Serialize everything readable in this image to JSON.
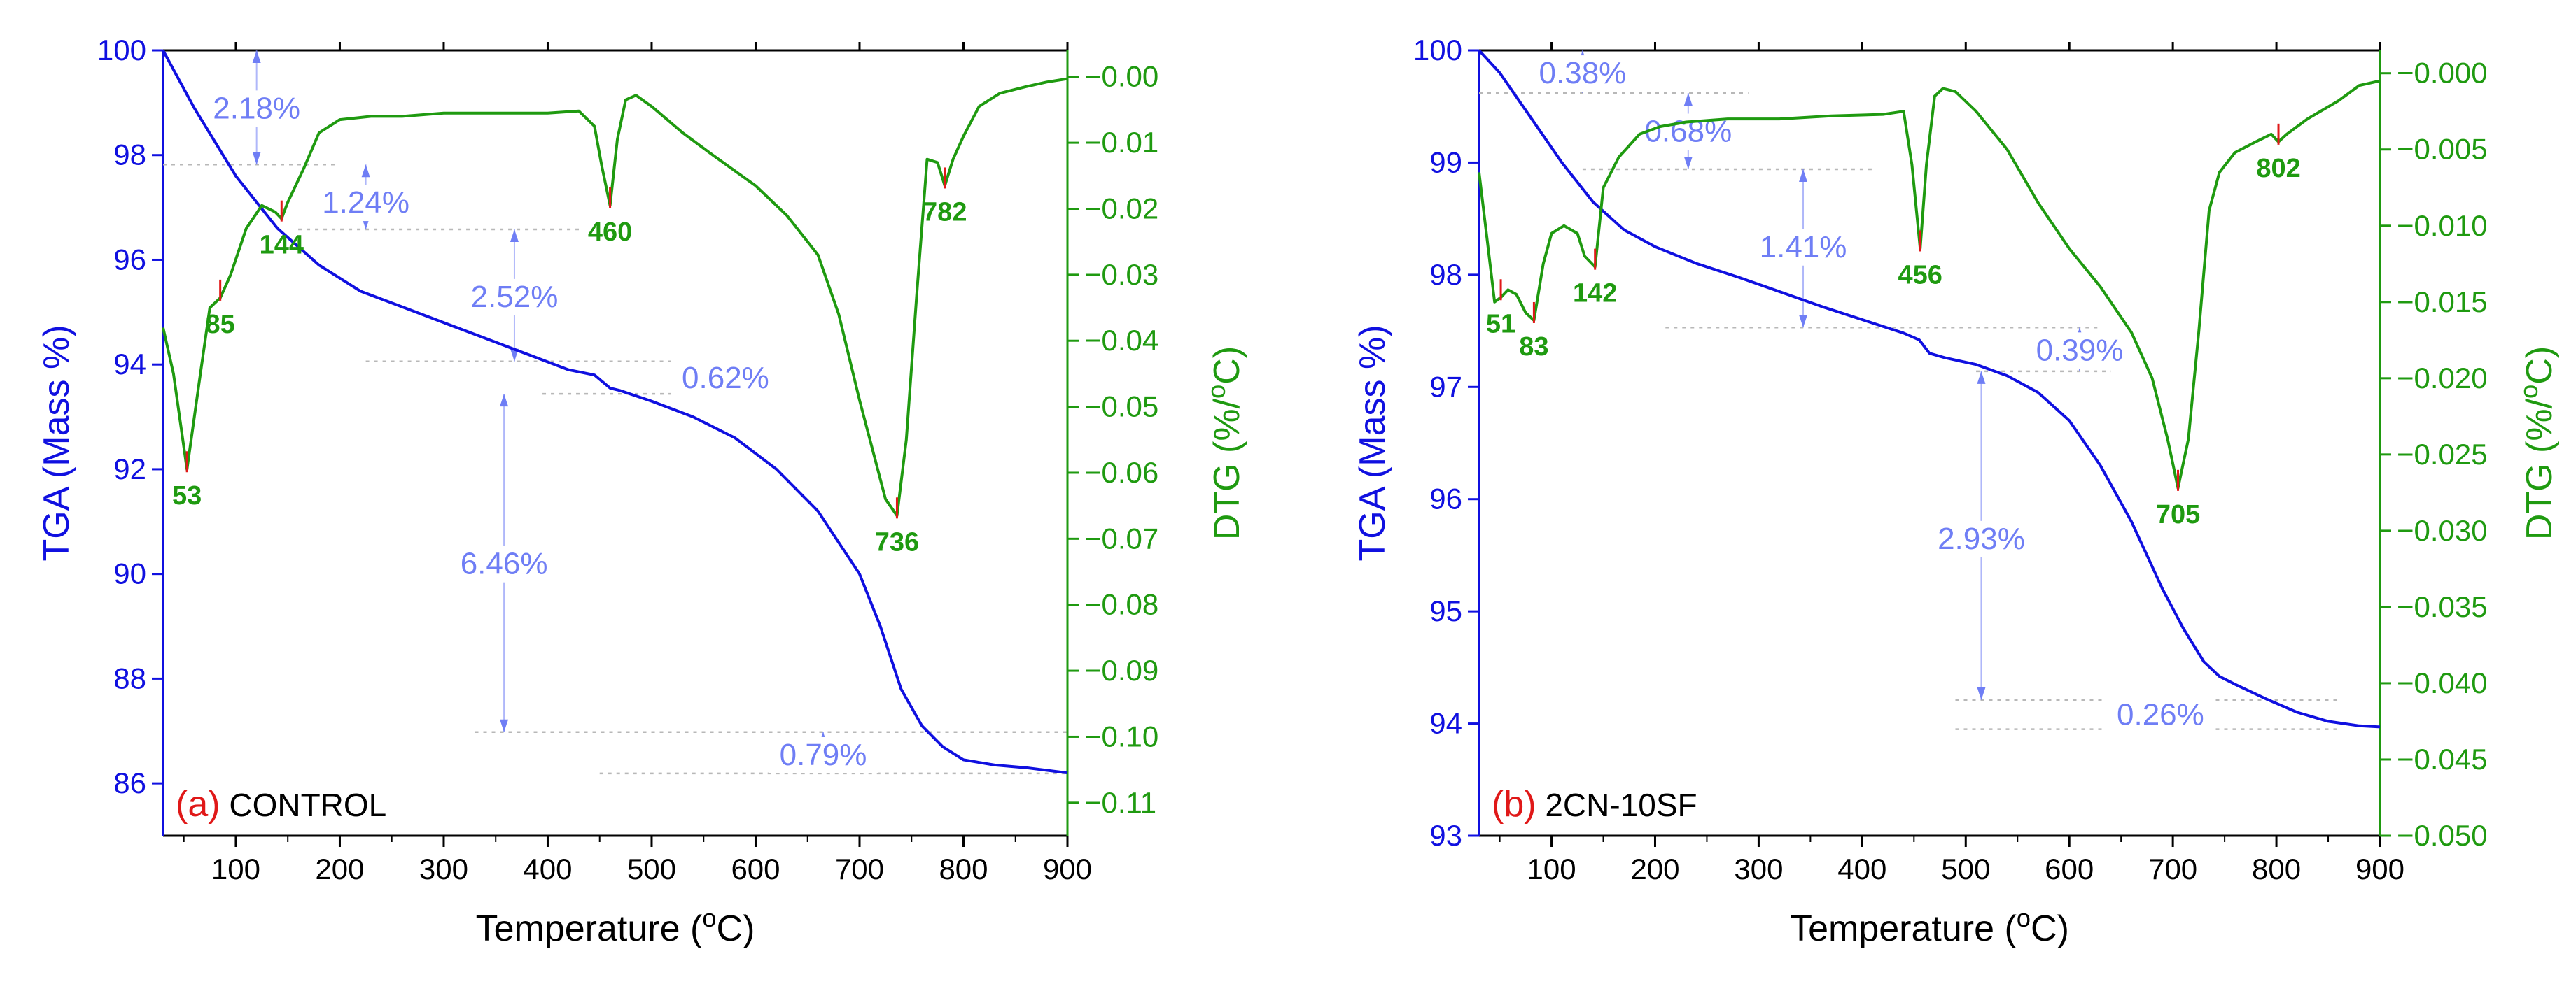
{
  "colors": {
    "tga": "#1010e0",
    "dtg": "#1f9a10",
    "annotation": "#6f7ef5",
    "peak_tick": "#e01818",
    "panel_letter": "#e01818",
    "axis": "#000000",
    "guide": "#b8b8b8"
  },
  "chart_data": [
    {
      "type": "line",
      "panel_letter": "(a)",
      "sample_label": "CONTROL",
      "xlabel": "Temperature (oC)",
      "ylabel_left": "TGA (Mass %)",
      "ylabel_right": "DTG (%/oC)",
      "xlim": [
        30,
        900
      ],
      "ylim_left": [
        85,
        100
      ],
      "ylim_right": [
        -0.115,
        0.004
      ],
      "x_ticks": [
        100,
        200,
        300,
        400,
        500,
        600,
        700,
        800,
        900
      ],
      "x_tick_labels": [
        "100",
        "200",
        "300",
        "400",
        "500",
        "600",
        "700",
        "800",
        "900"
      ],
      "y_left_ticks": [
        86,
        88,
        90,
        92,
        94,
        96,
        98,
        100
      ],
      "y_left_tick_labels": [
        "86",
        "88",
        "90",
        "92",
        "94",
        "96",
        "98",
        "100"
      ],
      "y_right_ticks": [
        0.0,
        -0.01,
        -0.02,
        -0.03,
        -0.04,
        -0.05,
        -0.06,
        -0.07,
        -0.08,
        -0.09,
        -0.1,
        -0.11
      ],
      "y_right_tick_labels": [
        "−0.00",
        "−0.01",
        "−0.02",
        "−0.03",
        "−0.04",
        "−0.05",
        "−0.06",
        "−0.07",
        "−0.08",
        "−0.09",
        "−0.10",
        "−0.11"
      ],
      "series": [
        {
          "name": "TGA",
          "axis": "left",
          "x": [
            30,
            60,
            100,
            140,
            180,
            220,
            260,
            300,
            340,
            380,
            420,
            445,
            460,
            470,
            500,
            540,
            580,
            620,
            660,
            700,
            720,
            740,
            760,
            780,
            800,
            830,
            860,
            900
          ],
          "values": [
            100.0,
            98.9,
            97.6,
            96.6,
            95.9,
            95.4,
            95.1,
            94.8,
            94.5,
            94.2,
            93.9,
            93.8,
            93.55,
            93.5,
            93.3,
            93.0,
            92.6,
            92.0,
            91.2,
            90.0,
            89.0,
            87.8,
            87.1,
            86.7,
            86.45,
            86.35,
            86.3,
            86.2
          ]
        },
        {
          "name": "DTG",
          "axis": "right",
          "x": [
            30,
            40,
            53,
            65,
            75,
            85,
            95,
            110,
            125,
            138,
            144,
            150,
            165,
            180,
            200,
            230,
            260,
            300,
            350,
            400,
            430,
            445,
            452,
            460,
            467,
            475,
            485,
            500,
            530,
            560,
            600,
            630,
            660,
            680,
            700,
            715,
            725,
            736,
            745,
            755,
            765,
            775,
            782,
            790,
            800,
            815,
            835,
            860,
            880,
            900
          ],
          "values": [
            -0.038,
            -0.045,
            -0.0595,
            -0.046,
            -0.035,
            -0.0335,
            -0.03,
            -0.023,
            -0.0195,
            -0.0205,
            -0.0215,
            -0.019,
            -0.014,
            -0.0085,
            -0.0065,
            -0.006,
            -0.006,
            -0.0055,
            -0.0055,
            -0.0055,
            -0.0052,
            -0.0075,
            -0.0135,
            -0.0195,
            -0.0095,
            -0.0035,
            -0.0028,
            -0.0045,
            -0.0085,
            -0.012,
            -0.0165,
            -0.021,
            -0.027,
            -0.036,
            -0.049,
            -0.058,
            -0.064,
            -0.0665,
            -0.055,
            -0.033,
            -0.0125,
            -0.013,
            -0.0165,
            -0.0125,
            -0.009,
            -0.0045,
            -0.0025,
            -0.0015,
            -0.0008,
            -0.0003
          ]
        }
      ],
      "peaks": [
        {
          "x": 53,
          "label": "53"
        },
        {
          "x": 85,
          "label": "85"
        },
        {
          "x": 144,
          "label": "144"
        },
        {
          "x": 460,
          "label": "460"
        },
        {
          "x": 736,
          "label": "736"
        },
        {
          "x": 782,
          "label": "782"
        }
      ],
      "mass_losses": [
        {
          "label": "2.18%",
          "x_arrow": 120,
          "y_top": 100.0,
          "y_bottom": 97.82,
          "guide_x0": 30,
          "guide_x1": 195,
          "text_x": 120,
          "text_y": 98.9
        },
        {
          "label": "1.24%",
          "x_arrow": 225,
          "y_top": 97.82,
          "y_bottom": 96.58,
          "guide_x0": 160,
          "guide_x1": 430,
          "text_x": 225,
          "text_y": 97.1
        },
        {
          "label": "2.52%",
          "x_arrow": 368,
          "y_top": 96.58,
          "y_bottom": 94.06,
          "guide_x0": 225,
          "guide_x1": 520,
          "text_x": 368,
          "text_y": 95.3
        },
        {
          "label": "0.62%",
          "x_arrow": 571,
          "y_top": 94.06,
          "y_bottom": 93.44,
          "guide_x0": 395,
          "guide_x1": 590,
          "text_x": 571,
          "text_y": 93.75
        },
        {
          "label": "6.46%",
          "x_arrow": 358,
          "y_top": 93.44,
          "y_bottom": 86.98,
          "guide_x0": 330,
          "guide_x1": 900,
          "text_x": 358,
          "text_y": 90.2
        },
        {
          "label": "0.79%",
          "x_arrow": 665,
          "y_top": 86.98,
          "y_bottom": 86.19,
          "guide_x0": 450,
          "guide_x1": 900,
          "text_x": 665,
          "text_y": 86.55
        }
      ]
    },
    {
      "type": "line",
      "panel_letter": "(b)",
      "sample_label": "2CN-10SF",
      "xlabel": "Temperature (oC)",
      "ylabel_left": "TGA (Mass %)",
      "ylabel_right": "DTG (%/oC)",
      "xlim": [
        30,
        900
      ],
      "ylim_left": [
        93,
        100
      ],
      "ylim_right": [
        -0.05,
        0.0015
      ],
      "x_ticks": [
        100,
        200,
        300,
        400,
        500,
        600,
        700,
        800,
        900
      ],
      "x_tick_labels": [
        "100",
        "200",
        "300",
        "400",
        "500",
        "600",
        "700",
        "800",
        "900"
      ],
      "y_left_ticks": [
        93,
        94,
        95,
        96,
        97,
        98,
        99,
        100
      ],
      "y_left_tick_labels": [
        "93",
        "94",
        "95",
        "96",
        "97",
        "98",
        "99",
        "100"
      ],
      "y_right_ticks": [
        0.0,
        -0.005,
        -0.01,
        -0.015,
        -0.02,
        -0.025,
        -0.03,
        -0.035,
        -0.04,
        -0.045,
        -0.05
      ],
      "y_right_tick_labels": [
        "−0.000",
        "−0.005",
        "−0.010",
        "−0.015",
        "−0.020",
        "−0.025",
        "−0.030",
        "−0.035",
        "−0.040",
        "−0.045",
        "−0.050"
      ],
      "series": [
        {
          "name": "TGA",
          "axis": "left",
          "x": [
            30,
            50,
            80,
            110,
            140,
            170,
            200,
            240,
            280,
            320,
            360,
            400,
            440,
            455,
            465,
            480,
            510,
            540,
            570,
            600,
            630,
            660,
            690,
            710,
            730,
            745,
            760,
            790,
            820,
            850,
            880,
            900
          ],
          "values": [
            100.0,
            99.8,
            99.4,
            99.0,
            98.65,
            98.4,
            98.25,
            98.1,
            97.98,
            97.85,
            97.72,
            97.6,
            97.48,
            97.42,
            97.3,
            97.26,
            97.2,
            97.1,
            96.95,
            96.7,
            96.3,
            95.8,
            95.2,
            94.85,
            94.55,
            94.42,
            94.35,
            94.22,
            94.1,
            94.02,
            93.98,
            93.97
          ]
        },
        {
          "name": "DTG",
          "axis": "right",
          "x": [
            30,
            38,
            45,
            51,
            58,
            66,
            75,
            83,
            92,
            100,
            112,
            125,
            132,
            142,
            150,
            165,
            185,
            205,
            230,
            270,
            320,
            370,
            420,
            440,
            448,
            456,
            462,
            470,
            478,
            490,
            510,
            540,
            570,
            600,
            630,
            660,
            680,
            695,
            705,
            715,
            725,
            735,
            745,
            760,
            780,
            795,
            802,
            810,
            830,
            860,
            880,
            900
          ],
          "values": [
            -0.0065,
            -0.011,
            -0.015,
            -0.0147,
            -0.0142,
            -0.0145,
            -0.0157,
            -0.0162,
            -0.0125,
            -0.0105,
            -0.01,
            -0.0105,
            -0.012,
            -0.0127,
            -0.0075,
            -0.0055,
            -0.004,
            -0.0035,
            -0.0032,
            -0.003,
            -0.003,
            -0.0028,
            -0.0027,
            -0.0025,
            -0.006,
            -0.0115,
            -0.006,
            -0.0015,
            -0.001,
            -0.0012,
            -0.0025,
            -0.005,
            -0.0085,
            -0.0115,
            -0.014,
            -0.017,
            -0.02,
            -0.024,
            -0.0272,
            -0.024,
            -0.017,
            -0.009,
            -0.0065,
            -0.0052,
            -0.0045,
            -0.004,
            -0.0045,
            -0.004,
            -0.003,
            -0.0018,
            -0.0008,
            -0.0005
          ]
        }
      ],
      "peaks": [
        {
          "x": 51,
          "label": "51"
        },
        {
          "x": 83,
          "label": "83"
        },
        {
          "x": 142,
          "label": "142"
        },
        {
          "x": 456,
          "label": "456"
        },
        {
          "x": 705,
          "label": "705"
        },
        {
          "x": 802,
          "label": "802"
        }
      ],
      "mass_losses": [
        {
          "label": "0.38%",
          "x_arrow": 130,
          "y_top": 100.0,
          "y_bottom": 99.62,
          "guide_x0": 30,
          "guide_x1": 290,
          "text_x": 130,
          "text_y": 99.8
        },
        {
          "label": "0.68%",
          "x_arrow": 232,
          "y_top": 99.62,
          "y_bottom": 98.94,
          "guide_x0": 130,
          "guide_x1": 410,
          "text_x": 232,
          "text_y": 99.28
        },
        {
          "label": "1.41%",
          "x_arrow": 343,
          "y_top": 98.94,
          "y_bottom": 97.53,
          "guide_x0": 210,
          "guide_x1": 630,
          "text_x": 343,
          "text_y": 98.25
        },
        {
          "label": "0.39%",
          "x_arrow": 610,
          "y_top": 97.53,
          "y_bottom": 97.14,
          "guide_x0": 510,
          "guide_x1": 640,
          "text_x": 610,
          "text_y": 97.33
        },
        {
          "label": "2.93%",
          "x_arrow": 515,
          "y_top": 97.14,
          "y_bottom": 94.21,
          "guide_x0": 490,
          "guide_x1": 860,
          "text_x": 515,
          "text_y": 95.65
        },
        {
          "label": "0.26%",
          "x_arrow": 688,
          "y_top": 94.21,
          "y_bottom": 93.95,
          "guide_x0": 490,
          "guide_x1": 860,
          "text_x": 688,
          "text_y": 94.08
        }
      ]
    }
  ]
}
